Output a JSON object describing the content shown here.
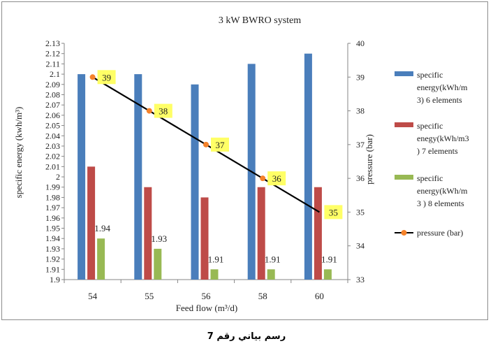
{
  "chart_data": {
    "type": "bar",
    "title": "3 kW BWRO system",
    "xlabel": "Feed flow (m³/d)",
    "ylabel": "specific energy (kwh/m³)",
    "y2label": "pressure (bar)",
    "categories": [
      "54",
      "55",
      "56",
      "58",
      "60"
    ],
    "ylim": [
      1.9,
      2.13
    ],
    "yticks": [
      "1.9",
      "1.91",
      "1.92",
      "1.93",
      "1.94",
      "1.95",
      "1.96",
      "1.97",
      "1.98",
      "1.99",
      "2",
      "2.01",
      "2.02",
      "2.03",
      "2.04",
      "2.05",
      "2.06",
      "2.07",
      "2.08",
      "2.09",
      "2.1",
      "2.11",
      "2.12",
      "2.13"
    ],
    "y2lim": [
      33,
      40
    ],
    "y2ticks": [
      "33",
      "34",
      "35",
      "36",
      "37",
      "38",
      "39",
      "40"
    ],
    "series": [
      {
        "name": "specific energy(kWh/m 3) 6 elements",
        "legend_lines": [
          "specific",
          "energy(kWh/m",
          "3) 6 elements"
        ],
        "color": "#4a7ebb",
        "values": [
          2.1,
          2.1,
          2.09,
          2.11,
          2.12
        ]
      },
      {
        "name": "specific enegy(kWh/m3 ) 7 elements",
        "legend_lines": [
          "specific",
          "enegy(kWh/m3",
          ") 7  elements"
        ],
        "color": "#be4b48",
        "values": [
          2.01,
          1.99,
          1.98,
          1.99,
          1.99
        ]
      },
      {
        "name": "specific energy(kWh/m 3 ) 8 elements",
        "legend_lines": [
          "specific",
          "energy(kWh/m",
          "3 )  8  elements"
        ],
        "color": "#98b954",
        "values": [
          1.94,
          1.93,
          1.91,
          1.91,
          1.91
        ]
      }
    ],
    "bar_labels": [
      "1.94",
      "1.93",
      "1.91",
      "1.91",
      "1.91"
    ],
    "line_series": {
      "name": "pressure (bar)",
      "legend_label": "pressure (bar)",
      "values": [
        39,
        38,
        37,
        36,
        35
      ],
      "labels": [
        "39",
        "38",
        "37",
        "36",
        "35"
      ],
      "line_color": "#000000",
      "marker_color": "#f5822a",
      "label_bg": "#ffff66",
      "axis": "right",
      "points_drawn": 4
    },
    "grid": false,
    "legend_position": "right"
  },
  "caption": "رسم بياني رقم 7"
}
